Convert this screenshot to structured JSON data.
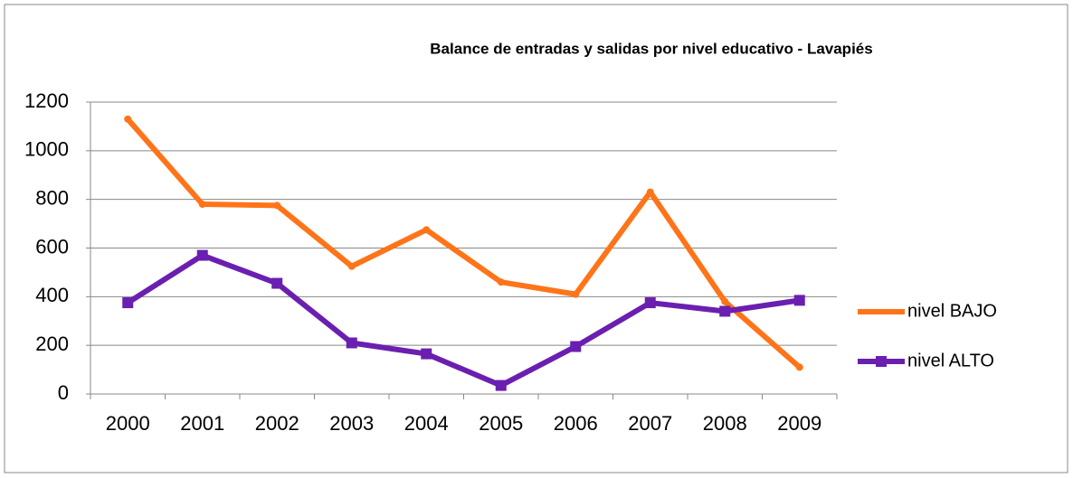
{
  "chart_data": {
    "type": "line",
    "title": "Balance de entradas y salidas por nivel educativo - Lavapiés",
    "categories": [
      "2000",
      "2001",
      "2002",
      "2003",
      "2004",
      "2005",
      "2006",
      "2007",
      "2008",
      "2009"
    ],
    "series": [
      {
        "name": "nivel BAJO",
        "color": "#ff7418",
        "values": [
          1130,
          780,
          775,
          525,
          675,
          460,
          410,
          830,
          380,
          110
        ]
      },
      {
        "name": "nivel ALTO",
        "color": "#6a1fb0",
        "values": [
          375,
          570,
          455,
          210,
          165,
          35,
          195,
          375,
          340,
          385
        ]
      }
    ],
    "ylim": [
      0,
      1200
    ],
    "yticks": [
      0,
      200,
      400,
      600,
      800,
      1000,
      1200
    ],
    "grid": true,
    "legend": "right"
  }
}
